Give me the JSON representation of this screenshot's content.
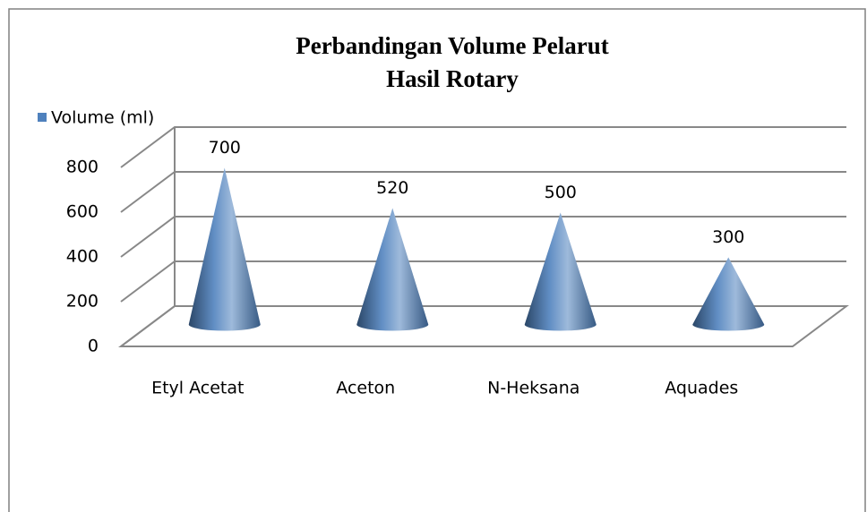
{
  "chart_data": {
    "type": "cone",
    "title": [
      "Perbandingan Volume Pelarut",
      "Hasil Rotary"
    ],
    "categories": [
      "Etyl Acetat",
      "Aceton",
      "N-Heksana",
      "Aquades"
    ],
    "series": [
      {
        "name": "Volume (ml)",
        "color": "#4f81bd",
        "values": [
          700,
          520,
          500,
          300
        ]
      }
    ],
    "ylim": [
      0,
      800
    ],
    "yticks": [
      0,
      200,
      400,
      600,
      800
    ],
    "grid": true,
    "legend": "top-left"
  }
}
